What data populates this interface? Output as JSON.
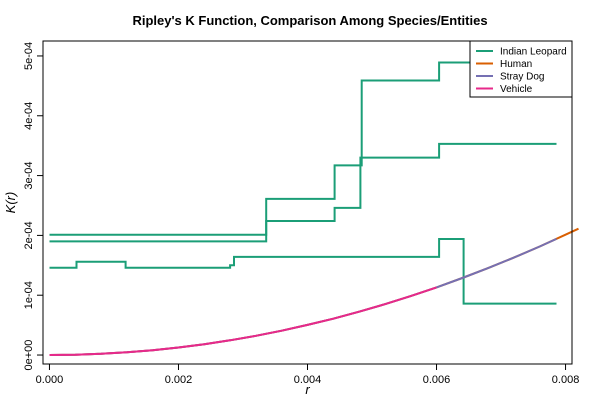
{
  "chart_data": {
    "type": "line",
    "title": "Ripley's K Function, Comparison Among Species/Entities",
    "xlabel": "r",
    "ylabel": "K(r)",
    "xlim": [
      -0.0001,
      0.0081
    ],
    "ylim": [
      -1.5e-05,
      0.000525
    ],
    "x_ticks": [
      {
        "value": 0,
        "label": "0.000"
      },
      {
        "value": 0.002,
        "label": "0.002"
      },
      {
        "value": 0.004,
        "label": "0.004"
      },
      {
        "value": 0.006,
        "label": "0.006"
      },
      {
        "value": 0.008,
        "label": "0.008"
      }
    ],
    "y_ticks": [
      {
        "value": 0,
        "label": "0e+00"
      },
      {
        "value": 0.0001,
        "label": "1e-04"
      },
      {
        "value": 0.0002,
        "label": "2e-04"
      },
      {
        "value": 0.0003,
        "label": "3e-04"
      },
      {
        "value": 0.0004,
        "label": "4e-04"
      },
      {
        "value": 0.0005,
        "label": "5e-04"
      }
    ],
    "grid": false,
    "legend_position": "top-right",
    "series": [
      {
        "name": "Indian Leopard",
        "color": "#1b9e77",
        "style": "step",
        "x": [
          0,
          0.00336,
          0.00336,
          0.00442,
          0.00442,
          0.00484,
          0.00484,
          0.00604,
          0.00604,
          0.00612,
          0.00612,
          0.00786
        ],
        "y": [
          0.000201,
          0.000201,
          0.000261,
          0.000261,
          0.000317,
          0.000317,
          0.000459,
          0.000459,
          0.000489,
          0.000489,
          0.000489,
          0.000489
        ]
      },
      {
        "name": "Indian Leopard",
        "color": "#1b9e77",
        "style": "step",
        "x": [
          0,
          0.00336,
          0.00336,
          0.00442,
          0.00442,
          0.00482,
          0.00482,
          0.00604,
          0.00604,
          0.00786
        ],
        "y": [
          0.00019,
          0.00019,
          0.000224,
          0.000224,
          0.000246,
          0.000246,
          0.00033,
          0.00033,
          0.000353,
          0.000353
        ]
      },
      {
        "name": "Indian Leopard",
        "color": "#1b9e77",
        "style": "step",
        "x": [
          0,
          0.00042,
          0.00042,
          0.00118,
          0.00118,
          0.0028,
          0.0028,
          0.00286,
          0.00286,
          0.00604,
          0.00604,
          0.00642,
          0.00642,
          0.00786
        ],
        "y": [
          0.000146,
          0.000146,
          0.000156,
          0.000156,
          0.000146,
          0.000146,
          0.00015,
          0.00015,
          0.000164,
          0.000164,
          0.000194,
          0.000194,
          8.6e-05,
          8.6e-05
        ]
      },
      {
        "name": "Human",
        "color": "#d95f02",
        "style": "curve",
        "x": [
          0,
          0.0004,
          0.0008,
          0.0012,
          0.0016,
          0.002,
          0.0024,
          0.0028,
          0.0032,
          0.0036,
          0.004,
          0.0044,
          0.0048,
          0.0052,
          0.0056,
          0.006,
          0.0064,
          0.0068,
          0.0072,
          0.0076,
          0.008,
          0.0082
        ],
        "y": [
          0,
          5e-07,
          2e-06,
          4.5e-06,
          8e-06,
          1.26e-05,
          1.81e-05,
          2.46e-05,
          3.22e-05,
          4.07e-05,
          5.03e-05,
          6.08e-05,
          7.24e-05,
          8.49e-05,
          9.85e-05,
          0.0001131,
          0.0001287,
          0.0001453,
          0.0001629,
          0.0001815,
          0.0002011,
          0.0002112
        ]
      },
      {
        "name": "Stray Dog",
        "color": "#7570b3",
        "style": "curve",
        "x": [
          0,
          0.0004,
          0.0008,
          0.0012,
          0.0016,
          0.002,
          0.0024,
          0.0028,
          0.0032,
          0.0036,
          0.004,
          0.0044,
          0.0048,
          0.0052,
          0.0056,
          0.006,
          0.0064,
          0.0068,
          0.0072,
          0.0076,
          0.00786
        ],
        "y": [
          0,
          5e-07,
          2e-06,
          4.5e-06,
          8e-06,
          1.26e-05,
          1.81e-05,
          2.46e-05,
          3.22e-05,
          4.07e-05,
          5.03e-05,
          6.08e-05,
          7.24e-05,
          8.49e-05,
          9.85e-05,
          0.0001131,
          0.0001287,
          0.0001453,
          0.0001629,
          0.0001815,
          0.0001941
        ]
      },
      {
        "name": "Vehicle",
        "color": "#e7298a",
        "style": "curve",
        "x": [
          0,
          0.0004,
          0.0008,
          0.0012,
          0.0016,
          0.002,
          0.0024,
          0.0028,
          0.0032,
          0.0036,
          0.004,
          0.0044,
          0.0048,
          0.0052,
          0.0056,
          0.006
        ],
        "y": [
          0,
          5e-07,
          2e-06,
          4.5e-06,
          8e-06,
          1.26e-05,
          1.81e-05,
          2.46e-05,
          3.22e-05,
          4.07e-05,
          5.03e-05,
          6.08e-05,
          7.24e-05,
          8.49e-05,
          9.85e-05,
          0.0001131
        ]
      }
    ],
    "legend": [
      {
        "name": "Indian Leopard",
        "color": "#1b9e77"
      },
      {
        "name": "Human",
        "color": "#d95f02"
      },
      {
        "name": "Stray Dog",
        "color": "#7570b3"
      },
      {
        "name": "Vehicle",
        "color": "#e7298a"
      }
    ]
  }
}
